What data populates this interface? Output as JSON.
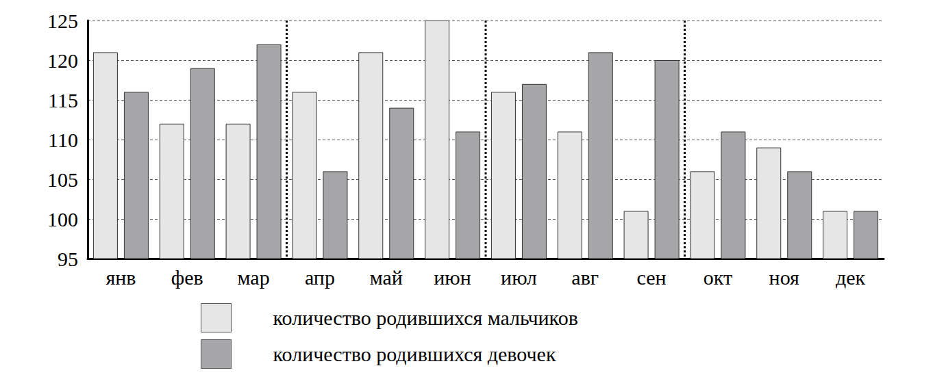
{
  "chart_data": {
    "type": "bar",
    "categories": [
      "янв",
      "фев",
      "мар",
      "апр",
      "май",
      "июн",
      "июл",
      "авг",
      "сен",
      "окт",
      "ноя",
      "дек"
    ],
    "series": [
      {
        "name": "количество родившихся мальчиков",
        "color": "#e6e6e6",
        "values": [
          121,
          112,
          112,
          116,
          121,
          125,
          116,
          111,
          101,
          106,
          109,
          101
        ]
      },
      {
        "name": "количество родившихся девочек",
        "color": "#a6a6a8",
        "values": [
          116,
          119,
          122,
          106,
          114,
          111,
          117,
          121,
          120,
          111,
          106,
          101
        ]
      }
    ],
    "ylim": [
      95,
      125
    ],
    "yticks": [
      95,
      100,
      105,
      110,
      115,
      120,
      125
    ],
    "grid": true,
    "legend": "bottom"
  }
}
